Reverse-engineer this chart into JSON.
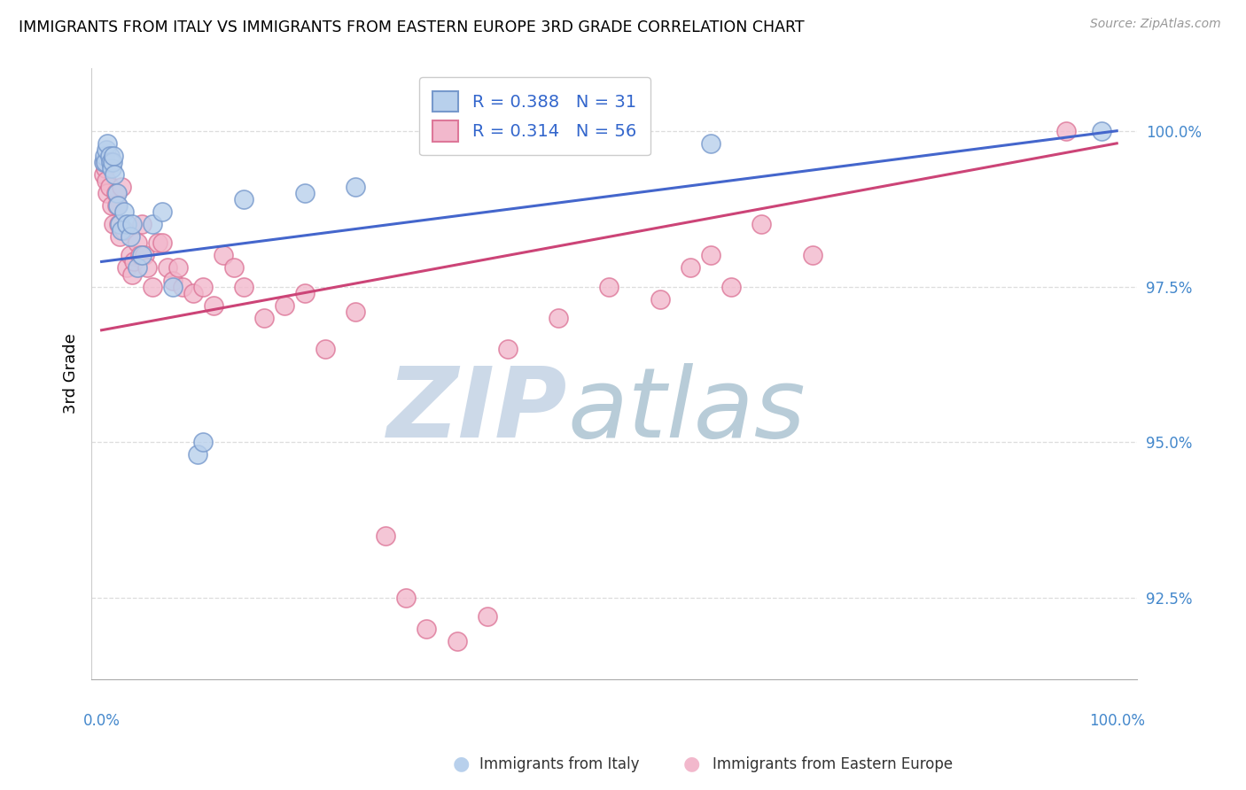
{
  "title": "IMMIGRANTS FROM ITALY VS IMMIGRANTS FROM EASTERN EUROPE 3RD GRADE CORRELATION CHART",
  "source": "Source: ZipAtlas.com",
  "ylabel": "3rd Grade",
  "ytick_labels": [
    "92.5%",
    "95.0%",
    "97.5%",
    "100.0%"
  ],
  "ytick_values": [
    92.5,
    95.0,
    97.5,
    100.0
  ],
  "ylim": [
    91.2,
    101.0
  ],
  "xlim": [
    -1.0,
    102.0
  ],
  "legend_italy_R": "0.388",
  "legend_italy_N": "31",
  "legend_eastern_R": "0.314",
  "legend_eastern_N": "56",
  "italy_color": "#b8d0ec",
  "italy_edge": "#7799cc",
  "eastern_color": "#f2b8cc",
  "eastern_edge": "#dd7799",
  "italy_line_color": "#4466cc",
  "eastern_line_color": "#cc4477",
  "watermark_zip_color": "#cddff0",
  "watermark_atlas_color": "#c8dde8",
  "background_color": "#ffffff",
  "grid_color": "#dddddd",
  "italy_x": [
    0.2,
    0.3,
    0.4,
    0.5,
    0.6,
    0.8,
    0.9,
    1.0,
    1.1,
    1.2,
    1.3,
    1.5,
    1.6,
    1.8,
    2.0,
    2.2,
    2.5,
    2.8,
    3.0,
    3.5,
    4.0,
    5.0,
    6.0,
    7.0,
    9.5,
    10.0,
    14.0,
    20.0,
    25.0,
    60.0,
    98.5
  ],
  "italy_y": [
    99.5,
    99.6,
    99.5,
    99.7,
    99.8,
    99.6,
    99.5,
    99.4,
    99.5,
    99.6,
    99.3,
    99.0,
    98.8,
    98.5,
    98.4,
    98.7,
    98.5,
    98.3,
    98.5,
    97.8,
    98.0,
    98.5,
    98.7,
    97.5,
    94.8,
    95.0,
    98.9,
    99.0,
    99.1,
    99.8,
    100.0
  ],
  "eastern_x": [
    0.2,
    0.3,
    0.4,
    0.5,
    0.6,
    0.8,
    1.0,
    1.2,
    1.4,
    1.5,
    1.7,
    1.8,
    2.0,
    2.2,
    2.5,
    2.8,
    3.0,
    3.2,
    3.5,
    3.8,
    4.0,
    4.2,
    4.5,
    5.0,
    5.5,
    6.0,
    6.5,
    7.0,
    7.5,
    8.0,
    9.0,
    10.0,
    11.0,
    12.0,
    13.0,
    14.0,
    16.0,
    18.0,
    20.0,
    22.0,
    25.0,
    28.0,
    30.0,
    32.0,
    35.0,
    38.0,
    40.0,
    45.0,
    50.0,
    55.0,
    58.0,
    60.0,
    62.0,
    65.0,
    70.0,
    95.0
  ],
  "eastern_y": [
    99.3,
    99.5,
    99.4,
    99.2,
    99.0,
    99.1,
    98.8,
    98.5,
    99.0,
    98.8,
    98.5,
    98.3,
    99.1,
    98.4,
    97.8,
    98.0,
    97.7,
    97.9,
    98.2,
    98.0,
    98.5,
    98.0,
    97.8,
    97.5,
    98.2,
    98.2,
    97.8,
    97.6,
    97.8,
    97.5,
    97.4,
    97.5,
    97.2,
    98.0,
    97.8,
    97.5,
    97.0,
    97.2,
    97.4,
    96.5,
    97.1,
    93.5,
    92.5,
    92.0,
    91.8,
    92.2,
    96.5,
    97.0,
    97.5,
    97.3,
    97.8,
    98.0,
    97.5,
    98.5,
    98.0,
    100.0
  ],
  "italy_line_x0": 0,
  "italy_line_y0": 97.9,
  "italy_line_x1": 100,
  "italy_line_y1": 100.0,
  "eastern_line_x0": 0,
  "eastern_line_y0": 96.8,
  "eastern_line_x1": 100,
  "eastern_line_y1": 99.8
}
